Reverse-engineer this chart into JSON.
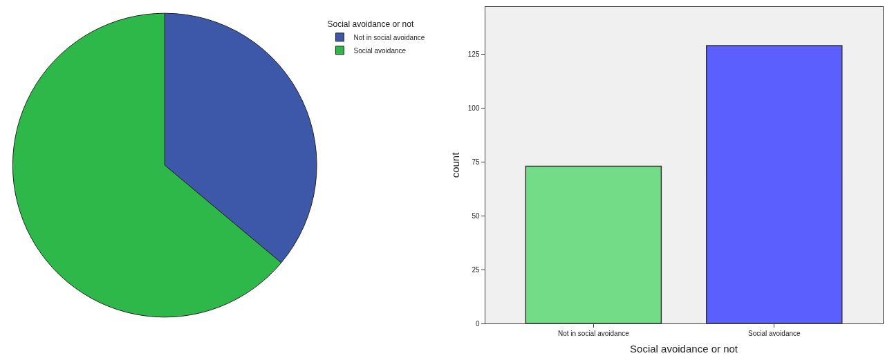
{
  "chart_data": [
    {
      "type": "pie",
      "legend_title": "Social avoidance or not",
      "legend": "top right",
      "categories": [
        "Not in social avoidance",
        "Social avoidance"
      ],
      "values": [
        36.1,
        63.9
      ],
      "colors": [
        "#3d58a8",
        "#2eb84a"
      ]
    },
    {
      "type": "bar",
      "xlabel": "Social avoidance or not",
      "ylabel": "count",
      "categories": [
        "Not in social avoidance",
        "Social avoidance"
      ],
      "values": [
        73,
        129
      ],
      "colors": [
        "#72dd86",
        "#5b5ffe"
      ],
      "ylim": [
        0,
        147
      ],
      "yticks": [
        0,
        25,
        50,
        75,
        100,
        125
      ],
      "grid": false
    }
  ]
}
